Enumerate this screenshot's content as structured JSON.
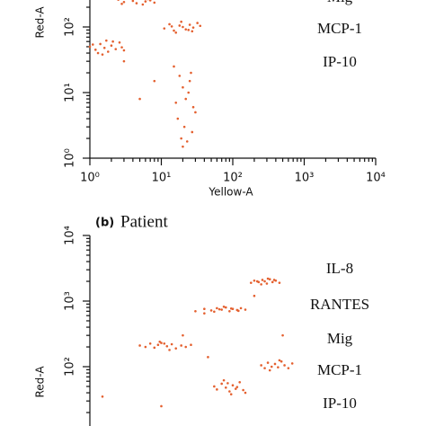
{
  "chart_data": [
    {
      "type": "scatter",
      "x_label": "Yellow-A",
      "y_label": "Red-A",
      "log_x": true,
      "log_y": true,
      "xlim": [
        1,
        10000
      ],
      "ylim": [
        1,
        10000
      ],
      "xticks": [
        {
          "value": 1,
          "label": "10⁰"
        },
        {
          "value": 10,
          "label": "10¹"
        },
        {
          "value": 100,
          "label": "10²"
        },
        {
          "value": 1000,
          "label": "10³"
        },
        {
          "value": 10000,
          "label": "10⁴"
        }
      ],
      "yticks": [
        {
          "value": 1,
          "label": "10⁰"
        },
        {
          "value": 10,
          "label": "10¹"
        },
        {
          "value": 100,
          "label": "10²"
        }
      ],
      "annotations": [
        "Mig",
        "MCP-1",
        "IP-10"
      ],
      "series": [
        {
          "color": "#e4602f",
          "x": [
            2.5,
            3,
            3.5,
            4,
            4.5,
            5,
            6,
            7,
            8,
            3.8,
            5.5,
            6.5,
            2.8,
            4.2,
            7.5
          ],
          "y": [
            260,
            240,
            280,
            250,
            230,
            270,
            245,
            255,
            235,
            290,
            220,
            265,
            225,
            300,
            275
          ]
        },
        {
          "color": "#e4602f",
          "x": [
            11,
            13,
            15,
            18,
            20,
            22,
            25,
            28,
            32,
            16,
            19,
            24,
            14,
            27,
            35
          ],
          "y": [
            95,
            110,
            88,
            105,
            100,
            92,
            108,
            98,
            115,
            82,
            120,
            90,
            102,
            86,
            104
          ]
        },
        {
          "color": "#e4602f",
          "x": [
            1,
            1.2,
            1.4,
            1.6,
            1.8,
            2,
            2.3,
            2.6,
            3,
            1.5,
            2.1,
            1.3,
            1.1,
            2.8,
            1.7
          ],
          "y": [
            50,
            45,
            55,
            48,
            42,
            52,
            46,
            58,
            44,
            38,
            60,
            40,
            54,
            49,
            62
          ]
        },
        {
          "color": "#e4602f",
          "x": [
            15,
            18,
            20,
            22,
            25,
            28,
            17,
            21,
            24,
            30,
            19,
            23,
            27,
            20,
            16,
            26,
            5,
            8,
            3
          ],
          "y": [
            25,
            18,
            12,
            8,
            15,
            6,
            4,
            3,
            10,
            5,
            2,
            1.8,
            2.5,
            1.5,
            7,
            20,
            8,
            15,
            30
          ]
        }
      ]
    },
    {
      "type": "scatter",
      "label": "(b)",
      "title": "Patient",
      "y_label": "Red-A",
      "log_x": true,
      "log_y": true,
      "xlim": [
        1,
        10000
      ],
      "ylim": [
        1,
        10000
      ],
      "yticks": [
        {
          "value": 100,
          "label": "10²"
        },
        {
          "value": 1000,
          "label": "10³"
        },
        {
          "value": 10000,
          "label": "10⁴"
        }
      ],
      "annotations": [
        "IL-8",
        "RANTES",
        "Mig",
        "MCP-1",
        "IP-10"
      ],
      "series": [
        {
          "color": "#e4602f",
          "x": [
            180,
            200,
            230,
            260,
            280,
            300,
            330,
            360,
            400,
            450,
            250,
            310,
            220,
            380
          ],
          "y": [
            1900,
            2050,
            1950,
            2100,
            2000,
            1850,
            2150,
            1950,
            2050,
            1900,
            1800,
            2200,
            2000,
            2100
          ]
        },
        {
          "color": "#e4602f",
          "x": [
            40,
            50,
            60,
            70,
            80,
            90,
            100,
            115,
            130,
            150,
            55,
            75,
            95,
            120,
            65
          ],
          "y": [
            760,
            720,
            780,
            740,
            800,
            700,
            760,
            730,
            780,
            740,
            690,
            820,
            770,
            710,
            750
          ]
        },
        {
          "color": "#e4602f",
          "x": [
            5,
            6,
            7,
            8,
            9,
            10,
            12,
            14,
            16,
            19,
            22,
            26,
            9.5,
            13,
            11
          ],
          "y": [
            210,
            200,
            225,
            195,
            215,
            230,
            205,
            220,
            190,
            210,
            200,
            215,
            240,
            180,
            225
          ]
        },
        {
          "color": "#e4602f",
          "x": [
            250,
            280,
            310,
            350,
            390,
            430,
            480,
            530,
            600,
            680,
            330,
            450
          ],
          "y": [
            105,
            95,
            115,
            100,
            110,
            98,
            120,
            105,
            95,
            112,
            88,
            125
          ]
        },
        {
          "color": "#e4602f",
          "x": [
            55,
            60,
            70,
            80,
            90,
            100,
            110,
            125,
            140,
            150,
            75,
            95,
            85,
            115
          ],
          "y": [
            50,
            45,
            55,
            48,
            42,
            52,
            46,
            58,
            44,
            40,
            62,
            38,
            56,
            49
          ]
        },
        {
          "color": "#e4602f",
          "x": [
            30,
            40,
            20,
            1.5,
            10,
            200,
            500,
            45
          ],
          "y": [
            700,
            650,
            300,
            35,
            25,
            1200,
            300,
            140
          ]
        }
      ]
    }
  ]
}
